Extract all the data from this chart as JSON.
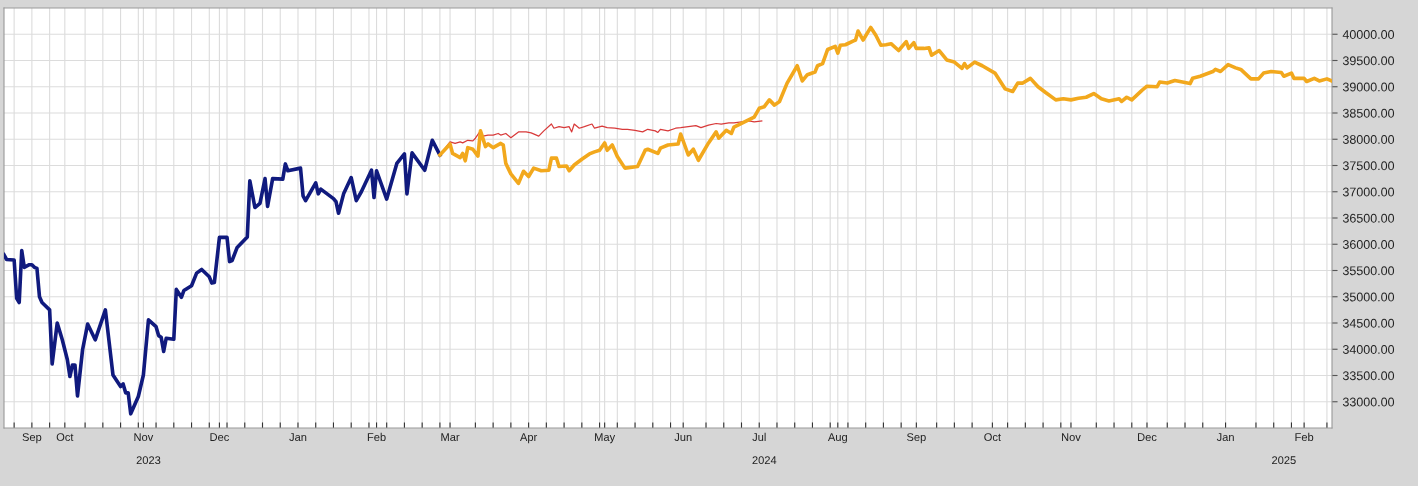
{
  "chart_data": {
    "type": "line",
    "xlim": [
      "2023-09-07",
      "2025-02-12"
    ],
    "ylim": [
      32500,
      40500
    ],
    "yticks": [
      {
        "value": 33000,
        "label": "33000.00"
      },
      {
        "value": 33500,
        "label": "33500.00"
      },
      {
        "value": 34000,
        "label": "34000.00"
      },
      {
        "value": 34500,
        "label": "34500.00"
      },
      {
        "value": 35000,
        "label": "35000.00"
      },
      {
        "value": 35500,
        "label": "35500.00"
      },
      {
        "value": 36000,
        "label": "36000.00"
      },
      {
        "value": 36500,
        "label": "36500.00"
      },
      {
        "value": 37000,
        "label": "37000.00"
      },
      {
        "value": 37500,
        "label": "37500.00"
      },
      {
        "value": 38000,
        "label": "38000.00"
      },
      {
        "value": 38500,
        "label": "38500.00"
      },
      {
        "value": 39000,
        "label": "39000.00"
      },
      {
        "value": 39500,
        "label": "39500.00"
      },
      {
        "value": 40000,
        "label": "40000.00"
      }
    ],
    "xticks": [
      {
        "value": "2023-09-18",
        "label": "Sep"
      },
      {
        "value": "2023-10-01",
        "label": "Oct"
      },
      {
        "value": "2023-11-01",
        "label": "Nov"
      },
      {
        "value": "2023-12-01",
        "label": "Dec"
      },
      {
        "value": "2024-01-01",
        "label": "Jan"
      },
      {
        "value": "2024-02-01",
        "label": "Feb"
      },
      {
        "value": "2024-03-01",
        "label": "Mar"
      },
      {
        "value": "2024-04-01",
        "label": "Apr"
      },
      {
        "value": "2024-05-01",
        "label": "May"
      },
      {
        "value": "2024-06-01",
        "label": "Jun"
      },
      {
        "value": "2024-07-01",
        "label": "Jul"
      },
      {
        "value": "2024-08-01",
        "label": "Aug"
      },
      {
        "value": "2024-09-01",
        "label": "Sep"
      },
      {
        "value": "2024-10-01",
        "label": "Oct"
      },
      {
        "value": "2024-11-01",
        "label": "Nov"
      },
      {
        "value": "2024-12-01",
        "label": "Dec"
      },
      {
        "value": "2025-01-01",
        "label": "Jan"
      },
      {
        "value": "2025-02-01",
        "label": "Feb"
      },
      {
        "value": "2023-09-11",
        "label": null
      },
      {
        "value": "2023-09-25",
        "label": null
      },
      {
        "value": "2023-10-09",
        "label": null
      },
      {
        "value": "2023-10-16",
        "label": null
      },
      {
        "value": "2023-10-23",
        "label": null
      },
      {
        "value": "2023-10-30",
        "label": null
      },
      {
        "value": "2023-11-06",
        "label": null
      },
      {
        "value": "2023-11-13",
        "label": null
      },
      {
        "value": "2023-11-20",
        "label": null
      },
      {
        "value": "2023-11-27",
        "label": null
      },
      {
        "value": "2023-12-04",
        "label": null
      },
      {
        "value": "2023-12-11",
        "label": null
      },
      {
        "value": "2023-12-18",
        "label": null
      },
      {
        "value": "2023-12-25",
        "label": null
      },
      {
        "value": "2024-01-08",
        "label": null
      },
      {
        "value": "2024-01-15",
        "label": null
      },
      {
        "value": "2024-01-22",
        "label": null
      },
      {
        "value": "2024-01-29",
        "label": null
      },
      {
        "value": "2024-02-05",
        "label": null
      },
      {
        "value": "2024-02-12",
        "label": null
      },
      {
        "value": "2024-02-19",
        "label": null
      },
      {
        "value": "2024-02-26",
        "label": null
      },
      {
        "value": "2024-03-11",
        "label": null
      },
      {
        "value": "2024-03-18",
        "label": null
      },
      {
        "value": "2024-03-25",
        "label": null
      },
      {
        "value": "2024-04-08",
        "label": null
      },
      {
        "value": "2024-04-15",
        "label": null
      },
      {
        "value": "2024-04-22",
        "label": null
      },
      {
        "value": "2024-04-29",
        "label": null
      },
      {
        "value": "2024-05-06",
        "label": null
      },
      {
        "value": "2024-05-13",
        "label": null
      },
      {
        "value": "2024-05-20",
        "label": null
      },
      {
        "value": "2024-05-27",
        "label": null
      },
      {
        "value": "2024-06-10",
        "label": null
      },
      {
        "value": "2024-06-17",
        "label": null
      },
      {
        "value": "2024-06-24",
        "label": null
      },
      {
        "value": "2024-07-08",
        "label": null
      },
      {
        "value": "2024-07-15",
        "label": null
      },
      {
        "value": "2024-07-22",
        "label": null
      },
      {
        "value": "2024-07-29",
        "label": null
      },
      {
        "value": "2024-08-05",
        "label": null
      },
      {
        "value": "2024-08-12",
        "label": null
      },
      {
        "value": "2024-08-19",
        "label": null
      },
      {
        "value": "2024-08-26",
        "label": null
      },
      {
        "value": "2024-09-09",
        "label": null
      },
      {
        "value": "2024-09-16",
        "label": null
      },
      {
        "value": "2024-09-23",
        "label": null
      },
      {
        "value": "2024-10-07",
        "label": null
      },
      {
        "value": "2024-10-14",
        "label": null
      },
      {
        "value": "2024-10-21",
        "label": null
      },
      {
        "value": "2024-10-28",
        "label": null
      },
      {
        "value": "2024-11-11",
        "label": null
      },
      {
        "value": "2024-11-18",
        "label": null
      },
      {
        "value": "2024-11-25",
        "label": null
      },
      {
        "value": "2024-12-09",
        "label": null
      },
      {
        "value": "2024-12-16",
        "label": null
      },
      {
        "value": "2024-12-23",
        "label": null
      },
      {
        "value": "2025-01-13",
        "label": null
      },
      {
        "value": "2025-01-20",
        "label": null
      },
      {
        "value": "2025-01-27",
        "label": null
      },
      {
        "value": "2025-02-10",
        "label": null
      }
    ],
    "x2lim": [
      "2023-09-07",
      "2025-02-12"
    ],
    "x2ticks": [
      {
        "value": "2023-11-03",
        "label": "2023"
      },
      {
        "value": "2024-07-03",
        "label": "2024"
      },
      {
        "value": "2025-01-24",
        "label": "2025"
      }
    ],
    "grid": true,
    "legend": false,
    "marker": "none",
    "line_style": "solid",
    "series": [
      {
        "color": "#101a7e",
        "x": [
          "2023-09-07",
          "2023-09-08",
          "2023-09-11",
          "2023-09-12",
          "2023-09-13",
          "2023-09-14",
          "2023-09-15",
          "2023-09-17",
          "2023-09-18",
          "2023-09-19",
          "2023-09-20",
          "2023-09-21",
          "2023-09-22",
          "2023-09-25",
          "2023-09-26",
          "2023-09-28",
          "2023-09-30",
          "2023-10-02",
          "2023-10-03",
          "2023-10-04",
          "2023-10-05",
          "2023-10-06",
          "2023-10-08",
          "2023-10-10",
          "2023-10-13",
          "2023-10-17",
          "2023-10-20",
          "2023-10-23",
          "2023-10-24",
          "2023-10-25",
          "2023-10-26",
          "2023-10-27",
          "2023-10-30",
          "2023-11-01",
          "2023-11-03",
          "2023-11-06",
          "2023-11-07",
          "2023-11-08",
          "2023-11-09",
          "2023-11-10",
          "2023-11-13",
          "2023-11-14",
          "2023-11-16",
          "2023-11-17",
          "2023-11-20",
          "2023-11-22",
          "2023-11-24",
          "2023-11-27",
          "2023-11-28",
          "2023-11-29",
          "2023-12-01",
          "2023-12-04",
          "2023-12-05",
          "2023-12-06",
          "2023-12-08",
          "2023-12-12",
          "2023-12-13",
          "2023-12-15",
          "2023-12-17",
          "2023-12-19",
          "2023-12-20",
          "2023-12-22",
          "2023-12-26",
          "2023-12-27",
          "2023-12-28",
          "2024-01-02",
          "2024-01-03",
          "2024-01-04",
          "2024-01-08",
          "2024-01-09",
          "2024-01-10",
          "2024-01-15",
          "2024-01-16",
          "2024-01-17",
          "2024-01-19",
          "2024-01-22",
          "2024-01-24",
          "2024-01-26",
          "2024-01-30",
          "2024-01-31",
          "2024-02-01",
          "2024-02-05",
          "2024-02-09",
          "2024-02-12",
          "2024-02-13",
          "2024-02-15",
          "2024-02-20",
          "2024-02-23",
          "2024-02-26"
        ],
        "values": [
          35800,
          35710,
          35700,
          34970,
          34890,
          35880,
          35560,
          35610,
          35610,
          35560,
          35540,
          35000,
          34890,
          34750,
          33720,
          34500,
          34180,
          33800,
          33480,
          33700,
          33700,
          33110,
          33990,
          34480,
          34180,
          34750,
          33510,
          33290,
          33340,
          33170,
          33170,
          32770,
          33100,
          33510,
          34560,
          34430,
          34260,
          34230,
          33960,
          34210,
          34190,
          35140,
          34990,
          35120,
          35210,
          35450,
          35520,
          35380,
          35260,
          35270,
          36130,
          36130,
          35670,
          35690,
          35940,
          36140,
          37210,
          36700,
          36780,
          37250,
          36720,
          37250,
          37240,
          37530,
          37400,
          37450,
          36920,
          36830,
          37170,
          36960,
          37050,
          36870,
          36810,
          36590,
          36960,
          37270,
          36830,
          37000,
          37410,
          36890,
          37400,
          36860,
          37540,
          37720,
          36960,
          37740,
          37410,
          37980,
          37700
        ]
      },
      {
        "color": "#d83a3a",
        "x": [
          "2024-02-26",
          "2024-03-01",
          "2024-03-03",
          "2024-03-05",
          "2024-03-06",
          "2024-03-08",
          "2024-03-10",
          "2024-03-11",
          "2024-03-13",
          "2024-03-14",
          "2024-03-16",
          "2024-03-18",
          "2024-03-20",
          "2024-03-21",
          "2024-03-23",
          "2024-03-25",
          "2024-03-28",
          "2024-03-31",
          "2024-04-02",
          "2024-04-05",
          "2024-04-07",
          "2024-04-10",
          "2024-04-11",
          "2024-04-13",
          "2024-04-15",
          "2024-04-17",
          "2024-04-18",
          "2024-04-19",
          "2024-04-21",
          "2024-04-23",
          "2024-04-26",
          "2024-04-27",
          "2024-04-30",
          "2024-05-02",
          "2024-05-05",
          "2024-05-08",
          "2024-05-10",
          "2024-05-13",
          "2024-05-16",
          "2024-05-18",
          "2024-05-21",
          "2024-05-22",
          "2024-05-23",
          "2024-05-26",
          "2024-05-29",
          "2024-05-31",
          "2024-06-03",
          "2024-06-06",
          "2024-06-08",
          "2024-06-11",
          "2024-06-14",
          "2024-06-16",
          "2024-06-19",
          "2024-06-21",
          "2024-06-24",
          "2024-06-27",
          "2024-06-29",
          "2024-07-02"
        ],
        "values": [
          37700,
          37950,
          37920,
          37950,
          37930,
          37980,
          37970,
          38020,
          38160,
          38060,
          38080,
          38080,
          38110,
          38080,
          38110,
          38030,
          38140,
          38140,
          38120,
          38060,
          38160,
          38290,
          38210,
          38240,
          38220,
          38240,
          38140,
          38290,
          38210,
          38240,
          38290,
          38210,
          38250,
          38220,
          38210,
          38190,
          38190,
          38170,
          38140,
          38190,
          38160,
          38130,
          38190,
          38160,
          38210,
          38220,
          38240,
          38260,
          38220,
          38270,
          38300,
          38290,
          38310,
          38310,
          38330,
          38350,
          38330,
          38350
        ]
      },
      {
        "color": "#f2a81d",
        "x": [
          "2024-02-26",
          "2024-03-01",
          "2024-03-02",
          "2024-03-05",
          "2024-03-06",
          "2024-03-07",
          "2024-03-08",
          "2024-03-10",
          "2024-03-12",
          "2024-03-13",
          "2024-03-15",
          "2024-03-16",
          "2024-03-18",
          "2024-03-21",
          "2024-03-22",
          "2024-03-23",
          "2024-03-25",
          "2024-03-28",
          "2024-03-30",
          "2024-04-01",
          "2024-04-03",
          "2024-04-06",
          "2024-04-09",
          "2024-04-10",
          "2024-04-12",
          "2024-04-13",
          "2024-04-16",
          "2024-04-17",
          "2024-04-19",
          "2024-04-22",
          "2024-04-25",
          "2024-04-27",
          "2024-04-29",
          "2024-05-01",
          "2024-05-02",
          "2024-05-04",
          "2024-05-06",
          "2024-05-09",
          "2024-05-14",
          "2024-05-17",
          "2024-05-18",
          "2024-05-22",
          "2024-05-23",
          "2024-05-26",
          "2024-05-30",
          "2024-05-31",
          "2024-06-03",
          "2024-06-05",
          "2024-06-07",
          "2024-06-11",
          "2024-06-14",
          "2024-06-15",
          "2024-06-18",
          "2024-06-20",
          "2024-06-21",
          "2024-06-26",
          "2024-06-29",
          "2024-07-01",
          "2024-07-03",
          "2024-07-05",
          "2024-07-07",
          "2024-07-09",
          "2024-07-12",
          "2024-07-16",
          "2024-07-18",
          "2024-07-20",
          "2024-07-23",
          "2024-07-24",
          "2024-07-26",
          "2024-07-28",
          "2024-07-31",
          "2024-08-01",
          "2024-08-02",
          "2024-08-04",
          "2024-08-07",
          "2024-08-08",
          "2024-08-09",
          "2024-08-11",
          "2024-08-14",
          "2024-08-16",
          "2024-08-18",
          "2024-08-20",
          "2024-08-22",
          "2024-08-25",
          "2024-08-28",
          "2024-08-29",
          "2024-08-31",
          "2024-09-01",
          "2024-09-04",
          "2024-09-06",
          "2024-09-07",
          "2024-09-10",
          "2024-09-13",
          "2024-09-16",
          "2024-09-19",
          "2024-09-20",
          "2024-09-21",
          "2024-09-24",
          "2024-09-27",
          "2024-10-02",
          "2024-10-06",
          "2024-10-09",
          "2024-10-11",
          "2024-10-13",
          "2024-10-16",
          "2024-10-19",
          "2024-10-22",
          "2024-10-26",
          "2024-10-29",
          "2024-11-01",
          "2024-11-04",
          "2024-11-07",
          "2024-11-10",
          "2024-11-13",
          "2024-11-16",
          "2024-11-20",
          "2024-11-21",
          "2024-11-23",
          "2024-11-25",
          "2024-11-29",
          "2024-12-01",
          "2024-12-05",
          "2024-12-06",
          "2024-12-09",
          "2024-12-12",
          "2024-12-15",
          "2024-12-18",
          "2024-12-19",
          "2024-12-22",
          "2024-12-27",
          "2024-12-28",
          "2024-12-30",
          "2025-01-02",
          "2025-01-05",
          "2025-01-07",
          "2025-01-11",
          "2025-01-14",
          "2025-01-16",
          "2025-01-19",
          "2025-01-23",
          "2025-01-24",
          "2025-01-27",
          "2025-01-28",
          "2025-02-01",
          "2025-02-02",
          "2025-02-05",
          "2025-02-07",
          "2025-02-10",
          "2025-02-12"
        ],
        "values": [
          37700,
          37910,
          37730,
          37650,
          37730,
          37590,
          37840,
          37810,
          37680,
          38160,
          37860,
          37910,
          37840,
          37920,
          37890,
          37540,
          37340,
          37160,
          37390,
          37290,
          37450,
          37400,
          37410,
          37640,
          37640,
          37480,
          37490,
          37400,
          37510,
          37620,
          37720,
          37760,
          37790,
          37930,
          37790,
          37890,
          37670,
          37450,
          37480,
          37790,
          37810,
          37730,
          37830,
          37890,
          37910,
          38100,
          37700,
          37810,
          37600,
          37930,
          38140,
          38020,
          38170,
          38110,
          38230,
          38350,
          38420,
          38590,
          38620,
          38750,
          38650,
          38720,
          39070,
          39400,
          39110,
          39230,
          39280,
          39400,
          39440,
          39710,
          39770,
          39640,
          39790,
          39800,
          39870,
          39890,
          40060,
          39890,
          40130,
          39980,
          39790,
          39800,
          39820,
          39690,
          39860,
          39730,
          39840,
          39730,
          39730,
          39740,
          39600,
          39690,
          39510,
          39470,
          39350,
          39440,
          39360,
          39470,
          39400,
          39260,
          38960,
          38910,
          39070,
          39070,
          39160,
          39000,
          38890,
          38750,
          38770,
          38750,
          38780,
          38800,
          38870,
          38770,
          38730,
          38770,
          38720,
          38800,
          38750,
          38930,
          39010,
          39000,
          39090,
          39070,
          39120,
          39090,
          39060,
          39160,
          39200,
          39290,
          39330,
          39290,
          39420,
          39360,
          39330,
          39150,
          39150,
          39260,
          39290,
          39270,
          39200,
          39260,
          39160,
          39160,
          39100,
          39160,
          39110,
          39150,
          39110
        ]
      }
    ]
  }
}
